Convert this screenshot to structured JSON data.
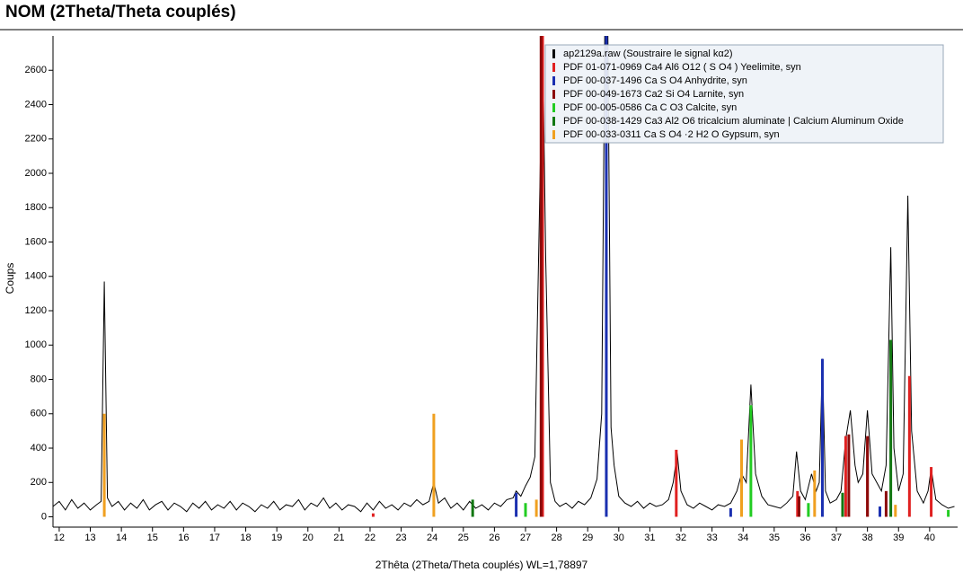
{
  "chart_data": {
    "type": "line",
    "title": "NOM (2Theta/Theta couplés)",
    "x_label": "2Thêta (2Theta/Theta couplés) WL=1,78897",
    "y_label": "Coups",
    "xlim": [
      11.8,
      40.9
    ],
    "xticks": [
      12,
      13,
      14,
      15,
      16,
      17,
      18,
      19,
      20,
      21,
      22,
      23,
      24,
      25,
      26,
      27,
      28,
      29,
      30,
      31,
      32,
      33,
      34,
      35,
      36,
      37,
      38,
      39,
      40
    ],
    "ylim": [
      -60,
      2800
    ],
    "yticks": [
      0,
      200,
      400,
      600,
      800,
      1000,
      1200,
      1400,
      1600,
      1800,
      2000,
      2200,
      2400,
      2600
    ],
    "legend": "upper right",
    "series": [
      {
        "name": "ap2129a.raw (Soustraire le signal kα2)",
        "color": "#000000",
        "style": "line",
        "x": [
          11.8,
          12.0,
          12.2,
          12.4,
          12.6,
          12.8,
          13.0,
          13.2,
          13.35,
          13.45,
          13.55,
          13.7,
          13.9,
          14.1,
          14.3,
          14.5,
          14.7,
          14.9,
          15.1,
          15.3,
          15.5,
          15.7,
          15.9,
          16.1,
          16.3,
          16.5,
          16.7,
          16.9,
          17.1,
          17.3,
          17.5,
          17.7,
          17.9,
          18.1,
          18.3,
          18.5,
          18.7,
          18.9,
          19.1,
          19.3,
          19.5,
          19.7,
          19.9,
          20.1,
          20.3,
          20.5,
          20.7,
          20.9,
          21.1,
          21.3,
          21.5,
          21.7,
          21.9,
          22.1,
          22.3,
          22.5,
          22.7,
          22.9,
          23.1,
          23.3,
          23.5,
          23.7,
          23.9,
          24.05,
          24.2,
          24.4,
          24.6,
          24.8,
          25.0,
          25.2,
          25.4,
          25.6,
          25.8,
          26.0,
          26.2,
          26.4,
          26.6,
          26.7,
          26.85,
          27.0,
          27.15,
          27.3,
          27.45,
          27.55,
          27.65,
          27.8,
          27.95,
          28.1,
          28.3,
          28.5,
          28.7,
          28.9,
          29.1,
          29.3,
          29.45,
          29.55,
          29.65,
          29.75,
          29.85,
          30.0,
          30.2,
          30.4,
          30.6,
          30.8,
          31.0,
          31.2,
          31.4,
          31.6,
          31.75,
          31.88,
          32.0,
          32.2,
          32.4,
          32.6,
          32.8,
          33.0,
          33.2,
          33.4,
          33.6,
          33.8,
          33.95,
          34.1,
          34.25,
          34.4,
          34.6,
          34.8,
          35.0,
          35.2,
          35.4,
          35.6,
          35.72,
          35.85,
          36.0,
          36.2,
          36.35,
          36.45,
          36.55,
          36.65,
          36.8,
          37.0,
          37.15,
          37.3,
          37.45,
          37.6,
          37.7,
          37.85,
          38.0,
          38.15,
          38.3,
          38.45,
          38.6,
          38.75,
          38.85,
          39.0,
          39.15,
          39.3,
          39.42,
          39.6,
          39.8,
          39.95,
          40.05,
          40.2,
          40.4,
          40.6,
          40.8
        ],
        "values": [
          60,
          90,
          40,
          100,
          50,
          80,
          40,
          70,
          90,
          1370,
          110,
          60,
          90,
          40,
          80,
          50,
          100,
          40,
          70,
          90,
          40,
          80,
          60,
          30,
          80,
          50,
          90,
          40,
          70,
          50,
          90,
          40,
          80,
          60,
          30,
          70,
          50,
          90,
          40,
          70,
          60,
          100,
          40,
          80,
          60,
          110,
          50,
          80,
          40,
          70,
          60,
          30,
          80,
          40,
          90,
          50,
          70,
          40,
          80,
          60,
          100,
          70,
          90,
          200,
          80,
          110,
          50,
          80,
          40,
          90,
          50,
          70,
          40,
          80,
          60,
          100,
          110,
          150,
          120,
          180,
          230,
          350,
          1800,
          2800,
          1500,
          200,
          90,
          60,
          80,
          50,
          90,
          70,
          110,
          220,
          600,
          2800,
          2800,
          520,
          300,
          120,
          80,
          60,
          90,
          50,
          80,
          60,
          70,
          100,
          200,
          370,
          150,
          70,
          50,
          80,
          60,
          40,
          70,
          60,
          80,
          150,
          250,
          200,
          770,
          250,
          120,
          70,
          60,
          50,
          80,
          120,
          380,
          150,
          100,
          250,
          150,
          200,
          920,
          150,
          80,
          100,
          150,
          450,
          620,
          300,
          200,
          250,
          620,
          250,
          200,
          150,
          300,
          1570,
          400,
          150,
          250,
          1870,
          500,
          150,
          80,
          150,
          280,
          100,
          70,
          50,
          60
        ]
      },
      {
        "name": "PDF 01-071-0969 Ca4 Al6 O12 ( S O4 ) Yeelimite, syn",
        "color": "#e02020",
        "style": "stick",
        "x": [
          22.1,
          27.55,
          31.85,
          35.75,
          37.3,
          38.0,
          39.35,
          40.05
        ],
        "values": [
          20,
          2800,
          390,
          150,
          470,
          460,
          820,
          290
        ]
      },
      {
        "name": "PDF 00-037-1496 Ca S O4 Anhydrite, syn",
        "color": "#1a2fb0",
        "style": "stick",
        "x": [
          26.7,
          29.6,
          33.6,
          36.55,
          38.4
        ],
        "values": [
          140,
          2800,
          50,
          920,
          60
        ]
      },
      {
        "name": "PDF 00-049-1673 Ca2 Si O4 Larnite, syn",
        "color": "#8b0a0a",
        "style": "stick",
        "x": [
          27.5,
          35.8,
          37.4,
          38.0,
          38.6
        ],
        "values": [
          2800,
          120,
          480,
          470,
          150
        ]
      },
      {
        "name": "PDF 00-005-0586 Ca C O3 Calcite, syn",
        "color": "#22cc22",
        "style": "stick",
        "x": [
          27.0,
          34.25,
          36.1,
          40.6
        ],
        "values": [
          80,
          650,
          80,
          40
        ]
      },
      {
        "name": "PDF 00-038-1429 Ca3 Al2 O6 tricalcium aluminate | Calcium Aluminum Oxide",
        "color": "#117711",
        "style": "stick",
        "x": [
          25.3,
          37.2,
          38.75
        ],
        "values": [
          100,
          140,
          1030
        ]
      },
      {
        "name": "PDF 00-033-0311 Ca S O4 ·2 H2 O Gypsum, syn",
        "color": "#f0a020",
        "style": "stick",
        "x": [
          13.45,
          24.05,
          27.35,
          33.95,
          36.3,
          38.9
        ],
        "values": [
          600,
          600,
          100,
          450,
          270,
          70
        ]
      }
    ]
  }
}
